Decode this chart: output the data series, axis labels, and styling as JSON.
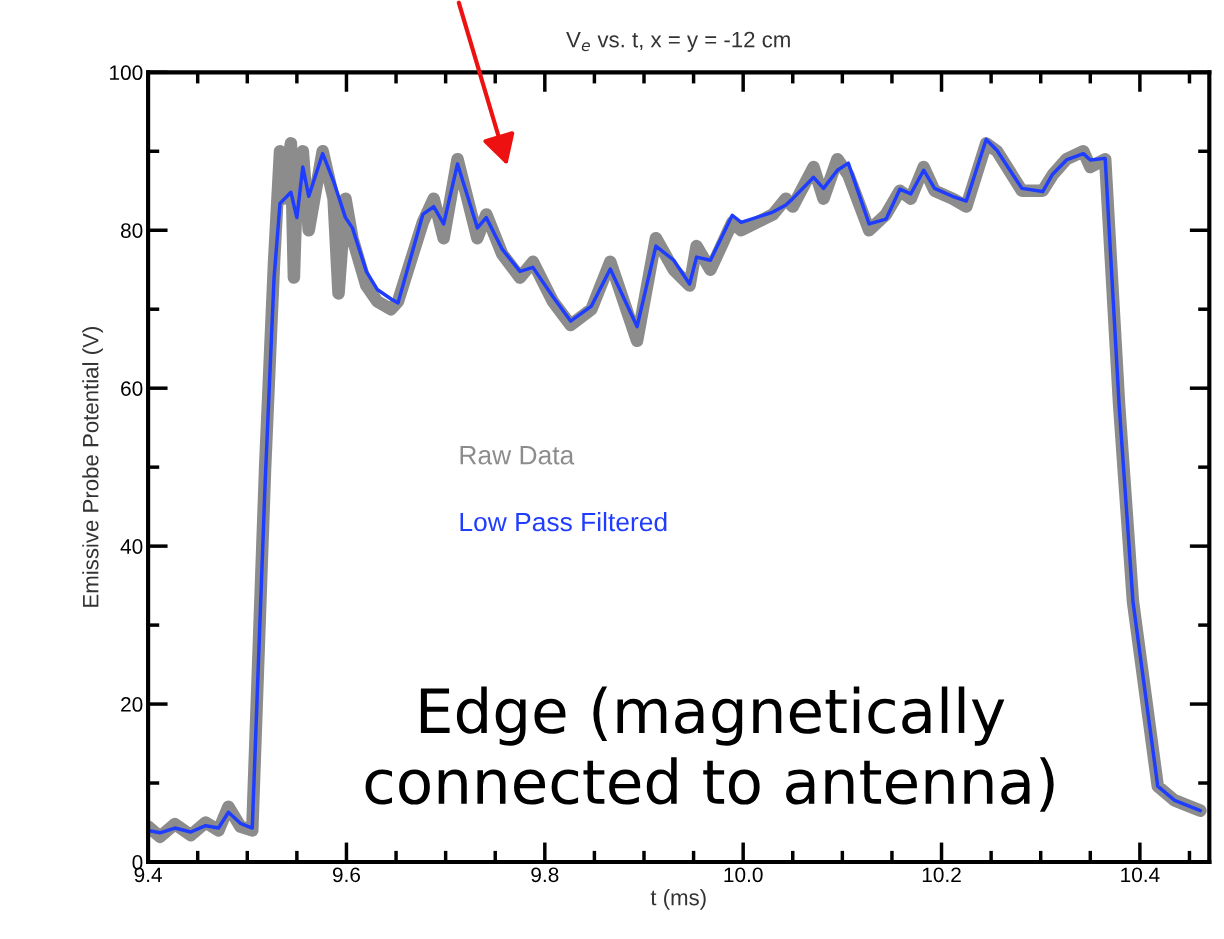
{
  "chart_data": {
    "type": "line",
    "title": "V$_{e}$ vs. t, x = y = -12 cm",
    "xlabel": "t (ms)",
    "ylabel": "Emissive Probe Potential (V)",
    "xlim": [
      9.4,
      10.47
    ],
    "xticks": [
      {
        "value": 9.4,
        "label": "9.4"
      },
      {
        "value": 9.6,
        "label": "9.6"
      },
      {
        "value": 9.8,
        "label": "9.8"
      },
      {
        "value": 10.0,
        "label": "10.0"
      },
      {
        "value": 10.2,
        "label": "10.2"
      },
      {
        "value": 10.4,
        "label": "10.4"
      }
    ],
    "ylim": [
      0,
      100
    ],
    "yticks": [
      0,
      20,
      40,
      60,
      80,
      100
    ],
    "grid": false,
    "legend": "center",
    "marker": "none",
    "line_style": "solid",
    "annotations": [
      "Edge (magnetically\nconnected to antenna)"
    ],
    "series": [
      {
        "name": "Raw Data",
        "color": "#8c8c8c",
        "x": [
          9.4,
          9.412,
          9.427,
          9.443,
          9.458,
          9.471,
          9.481,
          9.493,
          9.505,
          9.518,
          9.527,
          9.533,
          9.536,
          9.544,
          9.547,
          9.55,
          9.556,
          9.562,
          9.576,
          9.587,
          9.592,
          9.599,
          9.606,
          9.62,
          9.631,
          9.645,
          9.652,
          9.677,
          9.688,
          9.698,
          9.712,
          9.732,
          9.741,
          9.757,
          9.775,
          9.788,
          9.808,
          9.826,
          9.847,
          9.866,
          9.893,
          9.912,
          9.93,
          9.946,
          9.953,
          9.967,
          9.989,
          9.998,
          10.03,
          10.043,
          10.05,
          10.071,
          10.081,
          10.095,
          10.106,
          10.127,
          10.144,
          10.158,
          10.169,
          10.182,
          10.193,
          10.211,
          10.225,
          10.245,
          10.256,
          10.281,
          10.302,
          10.312,
          10.326,
          10.343,
          10.35,
          10.365,
          10.379,
          10.393,
          10.418,
          10.435,
          10.461
        ],
        "values": [
          4.5,
          3.2,
          4.8,
          3.4,
          5.0,
          4.0,
          7.0,
          4.5,
          4.0,
          50,
          76,
          90,
          84,
          91,
          74,
          86,
          90,
          80,
          90,
          84,
          72,
          84,
          79,
          73,
          71,
          70,
          71,
          81,
          84,
          79,
          89,
          79,
          82,
          77,
          74,
          76,
          71,
          68,
          70,
          76,
          66,
          79,
          75,
          73,
          78,
          75,
          81,
          80,
          82,
          84,
          83,
          88,
          84,
          89,
          87,
          80,
          82,
          85,
          84,
          88,
          85,
          84,
          83,
          91,
          90,
          85,
          85,
          87,
          89,
          90,
          88,
          89,
          58,
          33,
          9.6,
          7.8,
          6.5
        ]
      },
      {
        "name": "Low Pass Filtered",
        "color": "#1f3dff",
        "x": [
          9.4,
          9.412,
          9.427,
          9.443,
          9.458,
          9.471,
          9.481,
          9.493,
          9.505,
          9.518,
          9.527,
          9.533,
          9.544,
          9.55,
          9.556,
          9.562,
          9.576,
          9.587,
          9.599,
          9.606,
          9.62,
          9.631,
          9.645,
          9.652,
          9.677,
          9.688,
          9.698,
          9.712,
          9.732,
          9.741,
          9.757,
          9.775,
          9.788,
          9.808,
          9.826,
          9.847,
          9.866,
          9.893,
          9.912,
          9.93,
          9.946,
          9.953,
          9.967,
          9.989,
          9.998,
          10.03,
          10.043,
          10.05,
          10.071,
          10.081,
          10.095,
          10.106,
          10.127,
          10.144,
          10.158,
          10.169,
          10.182,
          10.193,
          10.211,
          10.225,
          10.245,
          10.256,
          10.281,
          10.302,
          10.312,
          10.326,
          10.343,
          10.35,
          10.365,
          10.379,
          10.393,
          10.418,
          10.435,
          10.461
        ],
        "values": [
          4.0,
          3.7,
          4.3,
          3.8,
          4.6,
          4.3,
          6.3,
          4.9,
          4.3,
          48,
          74,
          83.4,
          84.8,
          81.6,
          88,
          84.3,
          89.7,
          86.2,
          81.6,
          80.3,
          74.8,
          72.5,
          71.3,
          70.8,
          82,
          83,
          80.8,
          88.4,
          80.3,
          81.6,
          77.6,
          74.8,
          75.3,
          71.6,
          68.5,
          70.4,
          75.1,
          67.8,
          78,
          76.2,
          73.2,
          76.6,
          76.2,
          81.9,
          81,
          82.3,
          83.2,
          84,
          86.7,
          85.3,
          87.6,
          88.5,
          80.8,
          81.4,
          85.2,
          84.6,
          87.6,
          85.3,
          84.3,
          83.7,
          91.5,
          90.1,
          85.3,
          84.9,
          87.1,
          88.9,
          89.7,
          88.9,
          89.1,
          58,
          33,
          9.6,
          7.8,
          6.5
        ]
      }
    ]
  }
}
